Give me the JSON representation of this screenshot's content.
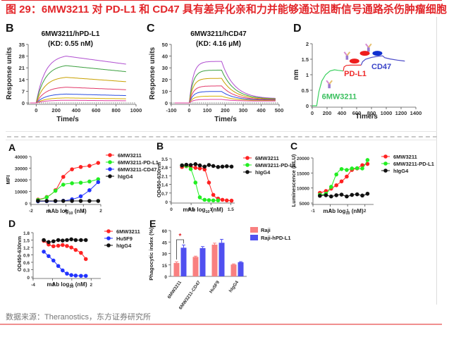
{
  "header": {
    "title": "图 29：6MW3211 对 PD-L1 和 CD47 具有差异化亲和力并能够通过阻断信号通路杀伤肿瘤细胞"
  },
  "footer": {
    "source": "数据来源：Theranostics，东方证券研究所"
  },
  "colors": {
    "accent": "#e3262a",
    "red": "#ff2222",
    "green": "#22ee22",
    "blue": "#2233ff",
    "black": "#111111",
    "raji": "#f98080",
    "raji_pdl1": "#5050f0"
  },
  "chart_data": [
    {
      "id": "top-B",
      "panel_label": "B",
      "type": "line",
      "title": "6MW3211/hPD-L1",
      "subtitle": "(KD: 0.55 nM)",
      "xlabel": "Time/s",
      "ylabel": "Response units",
      "xlim": [
        -80,
        1000
      ],
      "ylim": [
        0,
        35
      ],
      "xticks": [
        0,
        200,
        400,
        600,
        800,
        1000
      ],
      "yticks": [
        0,
        7,
        14,
        21,
        28,
        35
      ],
      "association_end": 300,
      "end_time": 900,
      "series": [
        {
          "name": "c1",
          "color": "#b04fd0",
          "plateau": 28.0,
          "end": 23.2
        },
        {
          "name": "c2",
          "color": "#3ca040",
          "plateau": 22.3,
          "end": 18.7
        },
        {
          "name": "c3",
          "color": "#c8a000",
          "plateau": 15.3,
          "end": 12.7
        },
        {
          "name": "c4",
          "color": "#e23a6a",
          "plateau": 9.4,
          "end": 7.9
        },
        {
          "name": "c5",
          "color": "#2a4ee0",
          "plateau": 5.3,
          "end": 4.4
        },
        {
          "name": "c6",
          "color": "#d6b000",
          "plateau": 3.0,
          "end": 2.5
        },
        {
          "name": "c7",
          "color": "#e040a0",
          "plateau": 1.6,
          "end": 1.3
        }
      ]
    },
    {
      "id": "top-C",
      "panel_label": "C",
      "type": "line",
      "title": "6MW3211/hCD47",
      "subtitle": "(KD: 4.16 μM)",
      "xlabel": "Time/s",
      "ylabel": "Response units",
      "xlim": [
        -100,
        500
      ],
      "ylim": [
        0,
        50
      ],
      "xticks": [
        -100,
        0,
        100,
        200,
        300,
        400,
        500
      ],
      "yticks": [
        0,
        10,
        20,
        30,
        40,
        50
      ],
      "association_end": 180,
      "end_time": 480,
      "series": [
        {
          "name": "c1",
          "color": "#b04fd0",
          "plateau": 35.5,
          "end": 3.5
        },
        {
          "name": "c2",
          "color": "#3ca040",
          "plateau": 28.0,
          "end": 3.2
        },
        {
          "name": "c3",
          "color": "#c8a000",
          "plateau": 21.0,
          "end": 2.9
        },
        {
          "name": "c4",
          "color": "#e23a6a",
          "plateau": 14.5,
          "end": 2.6
        },
        {
          "name": "c5",
          "color": "#2a4ee0",
          "plateau": 9.8,
          "end": 2.3
        },
        {
          "name": "c6",
          "color": "#d6b000",
          "plateau": 5.8,
          "end": 2.0
        },
        {
          "name": "c7",
          "color": "#e040a0",
          "plateau": 3.0,
          "end": 1.6
        }
      ]
    },
    {
      "id": "top-D",
      "panel_label": "D",
      "type": "line",
      "title": "",
      "xlabel": "Time/s",
      "ylabel": "nm",
      "xlim": [
        0,
        1400
      ],
      "ylim": [
        0,
        2.0
      ],
      "xticks": [
        0,
        200,
        400,
        600,
        800,
        1000,
        1200,
        1400
      ],
      "yticks": [
        0.0,
        0.5,
        1.0,
        1.5,
        2.0
      ],
      "segments": [
        {
          "name": "6MW3211",
          "color": "#3cd060",
          "points": [
            [
              0,
              0
            ],
            [
              60,
              0
            ],
            [
              90,
              0.45
            ],
            [
              130,
              0.8
            ],
            [
              180,
              1.0
            ],
            [
              240,
              1.12
            ],
            [
              300,
              1.16
            ],
            [
              350,
              1.14
            ],
            [
              420,
              1.12
            ]
          ]
        },
        {
          "name": "PD-L1",
          "color": "#ee2a2a",
          "points": [
            [
              420,
              1.12
            ],
            [
              430,
              1.25
            ],
            [
              460,
              1.3
            ],
            [
              520,
              1.31
            ],
            [
              600,
              1.31
            ],
            [
              660,
              1.31
            ]
          ]
        },
        {
          "name": "CD47",
          "color": "#4a4ac8",
          "points": [
            [
              660,
              1.31
            ],
            [
              680,
              1.42
            ],
            [
              720,
              1.5
            ],
            [
              800,
              1.56
            ],
            [
              900,
              1.6
            ],
            [
              950,
              1.61
            ],
            [
              980,
              1.55
            ],
            [
              1050,
              1.51
            ],
            [
              1150,
              1.47
            ],
            [
              1250,
              1.44
            ]
          ]
        }
      ],
      "annotations": [
        {
          "text": "6MW3211",
          "color": "#3cc060"
        },
        {
          "text": "PD-L1",
          "color": "#ee2a2a"
        },
        {
          "text": "CD47",
          "color": "#3a44c8"
        }
      ]
    },
    {
      "id": "bot-A",
      "panel_label": "A",
      "type": "scatter",
      "xlabel": "mAb log10 (nM)",
      "ylabel": "MFI",
      "xlim": [
        -2,
        2
      ],
      "ylim": [
        0,
        40000
      ],
      "xticks": [
        -2,
        -1,
        0,
        1,
        2
      ],
      "yticks": [
        0,
        10000,
        20000,
        30000,
        40000
      ],
      "legend": "top-right",
      "x": [
        -1.6,
        -1.1,
        -0.6,
        -0.15,
        0.35,
        0.85,
        1.35,
        1.85
      ],
      "series": [
        {
          "name": "6MW3211",
          "color": "#ff2222",
          "values": [
            3000,
            5200,
            11000,
            22500,
            29000,
            31000,
            32000,
            34500
          ]
        },
        {
          "name": "6MW3211-PD-L1",
          "color": "#22ee22",
          "values": [
            2600,
            5000,
            10500,
            15800,
            17000,
            17500,
            18500,
            20500
          ]
        },
        {
          "name": "6MW3211-CD47",
          "color": "#2233ff",
          "values": [
            1500,
            1600,
            1700,
            2000,
            3200,
            5800,
            11000,
            18000
          ]
        },
        {
          "name": "hIgG4",
          "color": "#111111",
          "values": [
            1800,
            1800,
            1800,
            1800,
            1800,
            1800,
            1800,
            1800
          ]
        }
      ]
    },
    {
      "id": "bot-B",
      "panel_label": "B",
      "type": "scatter",
      "xlabel": "mAb log10 (nM)",
      "ylabel": "OD450-630nm",
      "xlim": [
        0.0,
        1.6
      ],
      "ylim": [
        0.0,
        3.5
      ],
      "xticks": [
        0.0,
        0.5,
        1.0,
        1.5
      ],
      "yticks": [
        0.0,
        0.7,
        1.4,
        2.1,
        2.8,
        3.5
      ],
      "legend": "top-right",
      "series": [
        {
          "name": "6MW3211",
          "color": "#ff2222",
          "x": [
            0.27,
            0.38,
            0.49,
            0.61,
            0.72,
            0.84,
            0.95,
            1.06,
            1.18,
            1.29,
            1.4,
            1.52
          ],
          "values": [
            2.82,
            2.88,
            2.85,
            2.75,
            2.7,
            2.62,
            1.55,
            0.55,
            0.25,
            0.15,
            0.1,
            0.08
          ]
        },
        {
          "name": "6MW3211-PD-L1",
          "color": "#22ee22",
          "x": [
            0.27,
            0.38,
            0.49,
            0.61,
            0.72,
            0.84,
            0.95,
            1.06,
            1.18
          ],
          "values": [
            2.95,
            2.9,
            2.65,
            1.55,
            0.35,
            0.15,
            0.12,
            0.1,
            0.1
          ]
        },
        {
          "name": "hIgG4",
          "color": "#111111",
          "x": [
            0.27,
            0.38,
            0.49,
            0.61,
            0.72,
            0.84,
            0.95,
            1.06,
            1.18,
            1.29,
            1.4,
            1.52
          ],
          "values": [
            2.95,
            3.0,
            2.98,
            3.05,
            2.95,
            2.85,
            2.98,
            2.9,
            2.82,
            2.85,
            2.88,
            2.85
          ]
        }
      ]
    },
    {
      "id": "bot-C",
      "panel_label": "C",
      "type": "scatter",
      "xlabel": "mAb log10 (nM)",
      "ylabel": "Luminescence (RLU)",
      "xlim": [
        -1,
        2.5
      ],
      "ylim": [
        5000,
        20000
      ],
      "xticks": [
        -1,
        0,
        1,
        2
      ],
      "yticks": [
        5000,
        10000,
        15000,
        20000
      ],
      "legend": "top-right",
      "x": [
        -0.6,
        -0.25,
        0.05,
        0.35,
        0.65,
        0.95,
        1.25,
        1.55,
        1.85,
        2.15
      ],
      "series": [
        {
          "name": "6MW3211",
          "color": "#ff2222",
          "values": [
            8400,
            9000,
            9800,
            10900,
            12200,
            13800,
            16000,
            16500,
            17600,
            18000
          ]
        },
        {
          "name": "6MW3211-PD-L1",
          "color": "#22ee22",
          "values": [
            7800,
            8100,
            10400,
            14500,
            16300,
            16000,
            16500,
            16600,
            16500,
            19300
          ]
        },
        {
          "name": "hIgG4",
          "color": "#111111",
          "values": [
            7400,
            7600,
            7200,
            7600,
            7800,
            7200,
            7700,
            7900,
            7500,
            8100
          ]
        }
      ]
    },
    {
      "id": "bot-D",
      "panel_label": "D",
      "type": "scatter",
      "xlabel": "mAb log10 (nM)",
      "ylabel": "OD450-630nm",
      "xlim": [
        -4,
        3
      ],
      "ylim": [
        0.0,
        1.8
      ],
      "xticks": [
        -4,
        -2,
        0,
        2
      ],
      "yticks": [
        0.0,
        0.3,
        0.6,
        0.9,
        1.2,
        1.5,
        1.8
      ],
      "legend": "top-right",
      "x": [
        -2.9,
        -2.4,
        -1.9,
        -1.4,
        -0.95,
        -0.5,
        -0.05,
        0.4,
        0.95,
        1.45
      ],
      "series": [
        {
          "name": "6MW3211",
          "color": "#ff2222",
          "values": [
            1.47,
            1.32,
            1.25,
            1.27,
            1.3,
            1.26,
            1.2,
            1.1,
            0.98,
            0.73
          ]
        },
        {
          "name": "Hu5F9",
          "color": "#2233ff",
          "values": [
            1.03,
            0.85,
            0.67,
            0.45,
            0.27,
            0.14,
            0.08,
            0.06,
            0.05,
            0.05
          ]
        },
        {
          "name": "hIgG4",
          "color": "#111111",
          "values": [
            1.5,
            1.42,
            1.45,
            1.5,
            1.48,
            1.5,
            1.53,
            1.5,
            1.5,
            1.5
          ]
        }
      ]
    },
    {
      "id": "bot-E",
      "panel_label": "E",
      "type": "bar",
      "xlabel": "",
      "ylabel": "Phagocytic index (%)",
      "ylim": [
        0,
        60
      ],
      "yticks": [
        0,
        15,
        30,
        45,
        60
      ],
      "legend": "top-right",
      "categories": [
        "6MW3211",
        "6MW3211-CD47",
        "Hu5F9",
        "hIgG4"
      ],
      "series": [
        {
          "name": "Raji",
          "color": "#f98080",
          "values": [
            17.5,
            25.5,
            41.5,
            15.5
          ],
          "errors": [
            1.5,
            1.0,
            2.0,
            0.8
          ]
        },
        {
          "name": "Raji-hPD-L1",
          "color": "#5050f0",
          "values": [
            37.5,
            37.0,
            44.0,
            18.5
          ],
          "errors": [
            3.5,
            2.0,
            4.5,
            0.8
          ]
        }
      ],
      "annotation": "*"
    }
  ]
}
